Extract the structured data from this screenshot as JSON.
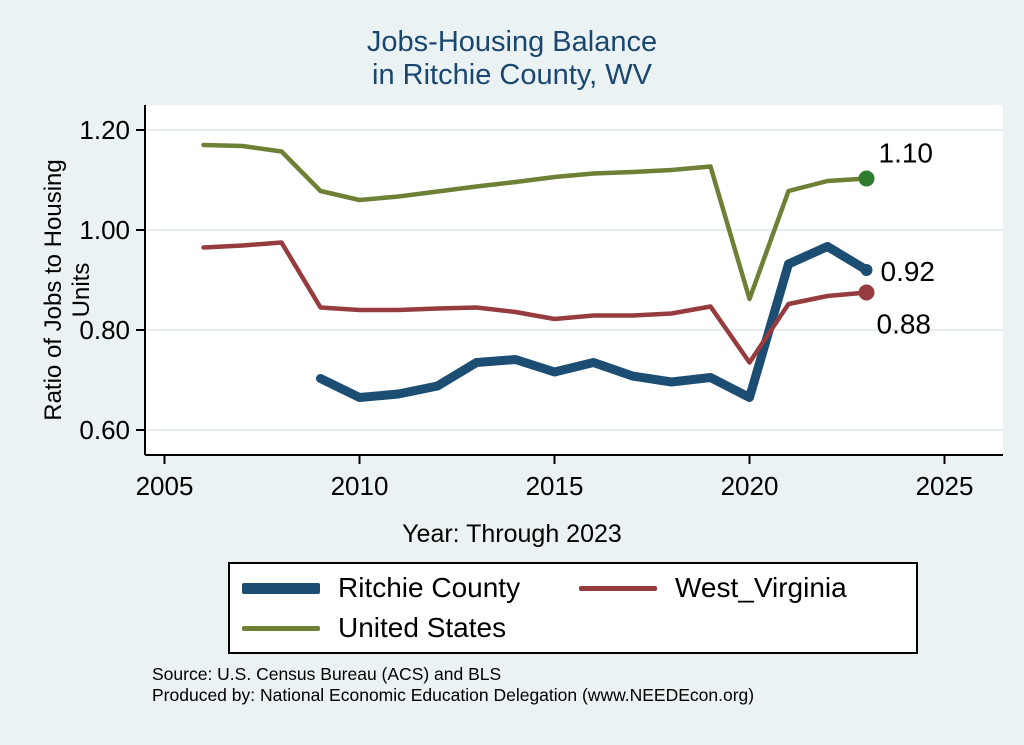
{
  "header": {
    "title_line1": "Jobs-Housing Balance",
    "title_line2": "in Ritchie County, WV"
  },
  "footer": {
    "source_line1": "Source: U.S. Census Bureau (ACS) and BLS",
    "source_line2": "Produced by: National Economic Education Delegation (www.NEEDEcon.org)"
  },
  "colors": {
    "background": "#eaf2f3",
    "title": "#1a476f",
    "axis": "#000000",
    "grid": "#dde9ee",
    "plot_background": "#ffffff"
  },
  "chart_data": {
    "type": "line",
    "title": "Jobs-Housing Balance in Ritchie County, WV",
    "xlabel": "Year: Through 2023",
    "ylabel": "Ratio of Jobs to Housing Units",
    "xlim": [
      2004.5,
      2026.5
    ],
    "ylim": [
      0.55,
      1.25
    ],
    "xticks": [
      2005,
      2010,
      2015,
      2020,
      2025
    ],
    "yticks": [
      0.6,
      0.8,
      1.0,
      1.2
    ],
    "grid": "horizontal",
    "legend_position": "bottom",
    "series": [
      {
        "name": "Ritchie County",
        "color": "#1c4d73",
        "width": 9,
        "end_label": "0.92",
        "end_dot": true,
        "dot_r": 6,
        "label_position": "right",
        "points": [
          [
            2009,
            0.703
          ],
          [
            2010,
            0.665
          ],
          [
            2011,
            0.672
          ],
          [
            2012,
            0.688
          ],
          [
            2013,
            0.735
          ],
          [
            2014,
            0.741
          ],
          [
            2015,
            0.716
          ],
          [
            2016,
            0.735
          ],
          [
            2017,
            0.708
          ],
          [
            2018,
            0.696
          ],
          [
            2019,
            0.705
          ],
          [
            2020,
            0.665
          ],
          [
            2021,
            0.932
          ],
          [
            2022,
            0.967
          ],
          [
            2023,
            0.92
          ]
        ]
      },
      {
        "name": "West_Virginia",
        "color": "#963c3f",
        "width": 4.5,
        "end_label": "0.88",
        "end_dot": true,
        "dot_r": 8,
        "label_position": "below",
        "points": [
          [
            2006,
            0.965
          ],
          [
            2007,
            0.969
          ],
          [
            2008,
            0.975
          ],
          [
            2009,
            0.845
          ],
          [
            2010,
            0.84
          ],
          [
            2011,
            0.84
          ],
          [
            2012,
            0.843
          ],
          [
            2013,
            0.845
          ],
          [
            2014,
            0.836
          ],
          [
            2015,
            0.822
          ],
          [
            2016,
            0.829
          ],
          [
            2017,
            0.829
          ],
          [
            2018,
            0.833
          ],
          [
            2019,
            0.847
          ],
          [
            2020,
            0.735
          ],
          [
            2021,
            0.852
          ],
          [
            2022,
            0.868
          ],
          [
            2023,
            0.875
          ]
        ]
      },
      {
        "name": "United States",
        "color": "#6d8036",
        "width": 4.5,
        "end_label": "1.10",
        "end_dot": true,
        "dot_r": 8,
        "dot_color": "#2e7d2e",
        "label_position": "above",
        "points": [
          [
            2006,
            1.17
          ],
          [
            2007,
            1.168
          ],
          [
            2008,
            1.157
          ],
          [
            2009,
            1.078
          ],
          [
            2010,
            1.06
          ],
          [
            2011,
            1.067
          ],
          [
            2012,
            1.077
          ],
          [
            2013,
            1.087
          ],
          [
            2014,
            1.096
          ],
          [
            2015,
            1.106
          ],
          [
            2016,
            1.113
          ],
          [
            2017,
            1.116
          ],
          [
            2018,
            1.12
          ],
          [
            2019,
            1.127
          ],
          [
            2020,
            0.862
          ],
          [
            2021,
            1.078
          ],
          [
            2022,
            1.098
          ],
          [
            2023,
            1.103
          ]
        ]
      }
    ]
  }
}
